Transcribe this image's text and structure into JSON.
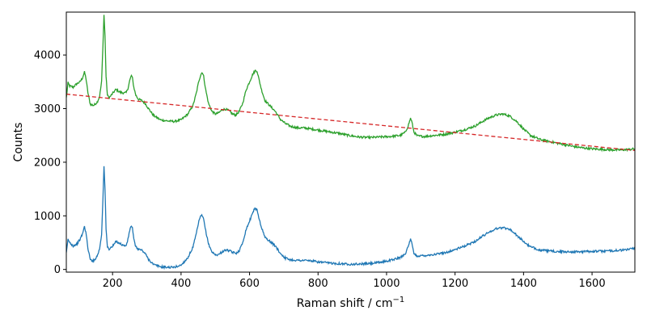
{
  "chart_data": {
    "type": "line",
    "title": "",
    "xlabel": "Raman shift / cm",
    "xlabel_superscript": "−1",
    "ylabel": "Counts",
    "xlim": [
      65,
      1725
    ],
    "ylim": [
      -50,
      4800
    ],
    "x_ticks": [
      200,
      400,
      600,
      800,
      1000,
      1200,
      1400,
      1600
    ],
    "y_ticks": [
      0,
      1000,
      2000,
      3000,
      4000
    ],
    "grid": false,
    "legend": "none",
    "baseline": {
      "x": [
        65,
        1725
      ],
      "y": [
        3270,
        2220
      ],
      "color": "#d62728",
      "style": "dashed"
    },
    "series": [
      {
        "color": "#2ca02c",
        "x": [
          65,
          70,
          75,
          85,
          95,
          105,
          112,
          118,
          122,
          128,
          135,
          145,
          155,
          162,
          168,
          172,
          175,
          178,
          181,
          185,
          190,
          200,
          210,
          218,
          225,
          235,
          240,
          245,
          250,
          255,
          258,
          262,
          268,
          275,
          285,
          295,
          305,
          320,
          340,
          360,
          380,
          400,
          420,
          435,
          445,
          452,
          458,
          462,
          466,
          472,
          480,
          490,
          500,
          510,
          520,
          530,
          540,
          550,
          560,
          570,
          580,
          590,
          600,
          610,
          617,
          622,
          627,
          635,
          645,
          660,
          675,
          690,
          705,
          720,
          740,
          760,
          780,
          800,
          830,
          860,
          890,
          920,
          950,
          980,
          1010,
          1040,
          1055,
          1063,
          1070,
          1074,
          1080,
          1090,
          1110,
          1140,
          1170,
          1200,
          1230,
          1260,
          1280,
          1300,
          1320,
          1340,
          1360,
          1380,
          1400,
          1420,
          1450,
          1480,
          1510,
          1540,
          1570,
          1600,
          1630,
          1660,
          1690,
          1710,
          1725
        ],
        "y": [
          3200,
          3480,
          3420,
          3400,
          3460,
          3500,
          3570,
          3680,
          3580,
          3300,
          3080,
          3060,
          3120,
          3220,
          3500,
          4200,
          4750,
          4350,
          3600,
          3250,
          3200,
          3280,
          3360,
          3320,
          3300,
          3290,
          3300,
          3380,
          3520,
          3620,
          3570,
          3400,
          3250,
          3180,
          3150,
          3100,
          3000,
          2870,
          2790,
          2770,
          2760,
          2790,
          2900,
          3060,
          3300,
          3520,
          3640,
          3680,
          3600,
          3350,
          3100,
          2950,
          2900,
          2920,
          2980,
          2990,
          2960,
          2900,
          2880,
          2950,
          3100,
          3350,
          3500,
          3650,
          3710,
          3700,
          3560,
          3350,
          3150,
          3050,
          2950,
          2800,
          2720,
          2670,
          2640,
          2640,
          2620,
          2600,
          2570,
          2540,
          2500,
          2470,
          2460,
          2470,
          2480,
          2500,
          2560,
          2680,
          2820,
          2750,
          2560,
          2490,
          2480,
          2500,
          2520,
          2560,
          2610,
          2680,
          2760,
          2830,
          2880,
          2900,
          2860,
          2760,
          2620,
          2500,
          2420,
          2380,
          2340,
          2300,
          2270,
          2250,
          2240,
          2230,
          2230,
          2240,
          2250
        ]
      },
      {
        "color": "#1f77b4",
        "x": [
          65,
          70,
          75,
          85,
          95,
          105,
          112,
          118,
          122,
          128,
          135,
          145,
          155,
          162,
          168,
          172,
          175,
          178,
          181,
          185,
          190,
          200,
          210,
          218,
          225,
          235,
          240,
          245,
          250,
          255,
          258,
          262,
          268,
          275,
          285,
          295,
          305,
          320,
          340,
          360,
          380,
          400,
          420,
          435,
          445,
          452,
          458,
          462,
          466,
          472,
          480,
          490,
          500,
          510,
          520,
          530,
          540,
          550,
          560,
          570,
          580,
          590,
          600,
          610,
          617,
          622,
          627,
          635,
          645,
          660,
          675,
          690,
          705,
          720,
          740,
          760,
          780,
          800,
          830,
          860,
          890,
          920,
          950,
          980,
          1010,
          1040,
          1055,
          1063,
          1070,
          1074,
          1080,
          1090,
          1110,
          1140,
          1170,
          1200,
          1230,
          1260,
          1280,
          1300,
          1320,
          1340,
          1360,
          1380,
          1400,
          1420,
          1450,
          1480,
          1510,
          1540,
          1570,
          1600,
          1630,
          1660,
          1690,
          1710,
          1725
        ],
        "y": [
          300,
          560,
          500,
          440,
          470,
          560,
          660,
          800,
          700,
          400,
          180,
          160,
          250,
          380,
          650,
          1350,
          1920,
          1500,
          750,
          420,
          380,
          430,
          520,
          500,
          470,
          440,
          450,
          560,
          730,
          820,
          770,
          560,
          420,
          380,
          360,
          300,
          190,
          90,
          50,
          40,
          40,
          80,
          220,
          420,
          680,
          900,
          1000,
          1000,
          930,
          720,
          480,
          330,
          270,
          280,
          330,
          360,
          350,
          320,
          300,
          350,
          500,
          750,
          900,
          1080,
          1140,
          1110,
          970,
          780,
          600,
          520,
          440,
          300,
          210,
          180,
          170,
          170,
          160,
          140,
          120,
          110,
          100,
          100,
          110,
          130,
          170,
          220,
          300,
          420,
          560,
          480,
          290,
          250,
          260,
          280,
          310,
          370,
          440,
          530,
          620,
          700,
          760,
          780,
          750,
          640,
          520,
          420,
          360,
          340,
          330,
          330,
          330,
          340,
          340,
          350,
          360,
          380,
          400
        ]
      }
    ]
  }
}
